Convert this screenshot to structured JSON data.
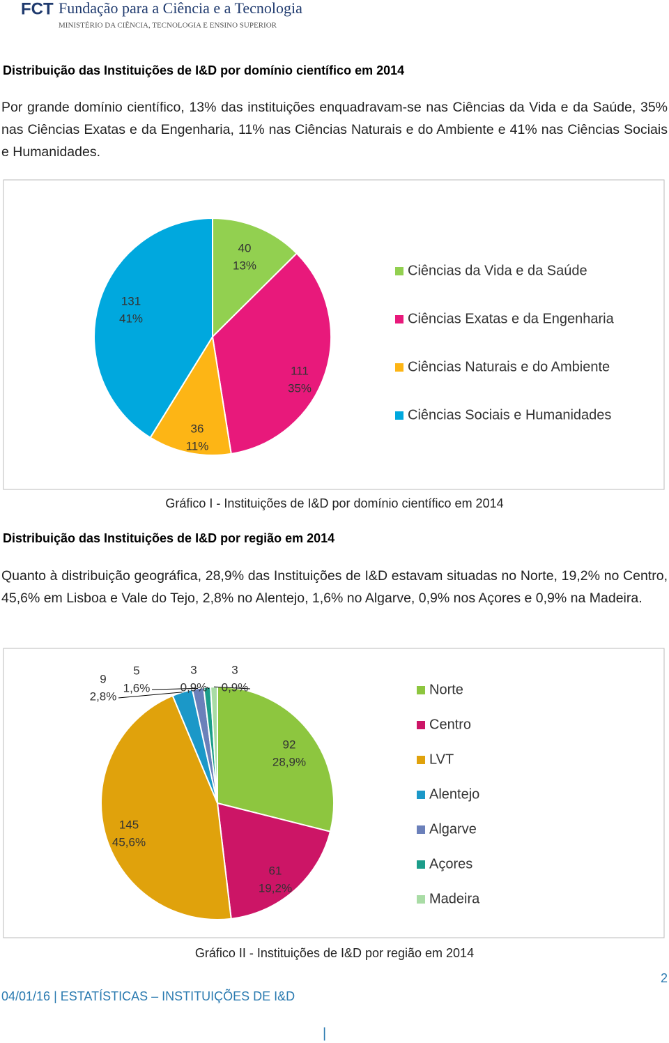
{
  "header": {
    "logo": "FCT",
    "name": "Fundação para a Ciência e a Tecnologia",
    "ministry": "MINISTÉRIO DA CIÊNCIA, TECNOLOGIA E ENSINO SUPERIOR"
  },
  "section1": {
    "title": "Distribuição das Instituições de I&D por domínio científico em 2014",
    "text": "Por grande domínio científico, 13% das instituições enquadravam-se nas Ciências da Vida e da Saúde, 35% nas Ciências Exatas e da Engenharia, 11% nas Ciências Naturais e do Ambiente e 41% nas Ciências Sociais e Humanidades."
  },
  "section2": {
    "title": "Distribuição das Instituições de I&D por região em 2014",
    "text": "Quanto à distribuição geográfica, 28,9% das Instituições de I&D estavam situadas no Norte, 19,2% no Centro, 45,6% em Lisboa e Vale do Tejo, 2,8% no Alentejo, 1,6% no Algarve, 0,9% nos Açores e 0,9% na Madeira."
  },
  "chart_data": [
    {
      "type": "pie",
      "caption": "Gráfico I - Instituições de I&D por domínio científico em 2014",
      "categories": [
        "Ciências da Vida e da Saúde",
        "Ciências Exatas e da Engenharia",
        "Ciências Naturais e do Ambiente",
        "Ciências Sociais e Humanidades"
      ],
      "values": [
        40,
        111,
        36,
        131
      ],
      "percent_labels": [
        "13%",
        "35%",
        "11%",
        "41%"
      ],
      "colors": [
        "#92d050",
        "#e8197b",
        "#fdb515",
        "#00a8de"
      ]
    },
    {
      "type": "pie",
      "caption": "Gráfico II - Instituições de I&D por região em 2014",
      "categories": [
        "Norte",
        "Centro",
        "LVT",
        "Alentejo",
        "Algarve",
        "Açores",
        "Madeira"
      ],
      "values": [
        92,
        61,
        145,
        9,
        5,
        3,
        3
      ],
      "percent_labels": [
        "28,9%",
        "19,2%",
        "45,6%",
        "2,8%",
        "1,6%",
        "0,9%",
        "0,9%"
      ],
      "colors": [
        "#8dc63f",
        "#cc1566",
        "#e0a20c",
        "#1b98c8",
        "#6b80ba",
        "#1c9d8a",
        "#a9dca5"
      ]
    }
  ],
  "footer": {
    "text": "04/01/16 | ESTATÍSTICAS – INSTITUIÇÕES DE I&D",
    "page": "2",
    "mark": "|"
  }
}
